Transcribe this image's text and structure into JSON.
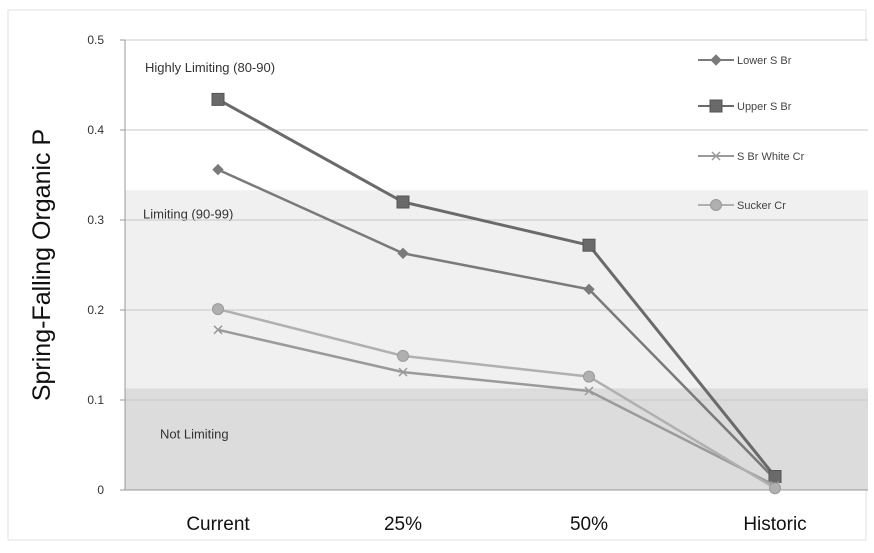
{
  "chart_data": {
    "type": "line",
    "title": "",
    "xlabel": "",
    "ylabel": "Spring-Falling Organic P",
    "categories": [
      "Current",
      "25%",
      "50%",
      "Historic"
    ],
    "ylim": [
      0,
      0.5
    ],
    "yticks": [
      0,
      0.1,
      0.2,
      0.3,
      0.4,
      0.5
    ],
    "ytick_labels": [
      "0",
      "0.1",
      "0.2",
      "0.3",
      "0.4",
      "0.5"
    ],
    "grid": true,
    "legend_position": "top-right",
    "bands": [
      {
        "label": "Highly Limiting (80-90)",
        "range": [
          0.333,
          0.5
        ],
        "color": "#ffffff"
      },
      {
        "label": "Limiting (90-99)",
        "range": [
          0.113,
          0.333
        ],
        "color": "#f0f0f0"
      },
      {
        "label": "Not Limiting",
        "range": [
          0,
          0.113
        ],
        "color": "#dcdcdc"
      }
    ],
    "series": [
      {
        "name": "Lower S Br",
        "marker": "diamond",
        "color": "#7a7a7a",
        "values": [
          0.356,
          0.263,
          0.223,
          0.012
        ]
      },
      {
        "name": "Upper S Br",
        "marker": "square",
        "color": "#6a6a6a",
        "values": [
          0.434,
          0.32,
          0.272,
          0.015
        ]
      },
      {
        "name": "S Br White Cr",
        "marker": "x",
        "color": "#9a9a9a",
        "values": [
          0.178,
          0.131,
          0.11,
          0.005
        ]
      },
      {
        "name": "Sucker Cr",
        "marker": "circle",
        "color": "#b0b0b0",
        "values": [
          0.201,
          0.149,
          0.126,
          0.002
        ]
      }
    ]
  }
}
